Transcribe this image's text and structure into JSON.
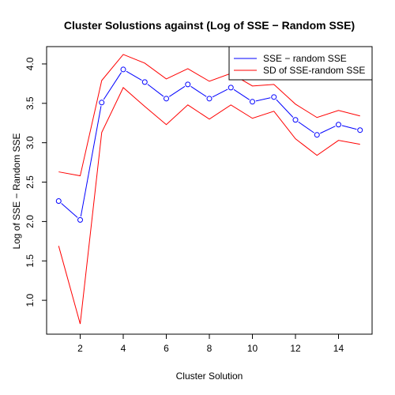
{
  "chart_data": {
    "type": "line",
    "title": "Cluster Solustions against (Log of SSE − Random SSE)",
    "xlabel": "Cluster Solution",
    "ylabel": "Log of SSE − Random SSE",
    "x": [
      1,
      2,
      3,
      4,
      5,
      6,
      7,
      8,
      9,
      10,
      11,
      12,
      13,
      14,
      15
    ],
    "xlim": [
      0.44,
      15.56
    ],
    "ylim": [
      0.57,
      4.22
    ],
    "xticks": [
      2,
      4,
      6,
      8,
      10,
      12,
      14
    ],
    "yticks": [
      1.0,
      1.5,
      2.0,
      2.5,
      3.0,
      3.5,
      4.0
    ],
    "xtick_labels": [
      "2",
      "4",
      "6",
      "8",
      "10",
      "12",
      "14"
    ],
    "ytick_labels": [
      "1.0",
      "1.5",
      "2.0",
      "2.5",
      "3.0",
      "3.5",
      "4.0"
    ],
    "grid": false,
    "legend_position": "top-right",
    "series": [
      {
        "name": "SSE − random SSE",
        "color": "#0000ff",
        "style": "line-with-open-circles",
        "values": [
          2.26,
          2.02,
          3.51,
          3.93,
          3.77,
          3.56,
          3.74,
          3.56,
          3.7,
          3.52,
          3.58,
          3.29,
          3.1,
          3.23,
          3.16
        ]
      },
      {
        "name": "SD of SSE-random SSE",
        "color": "#ff0000",
        "style": "line",
        "band": {
          "upper": [
            2.63,
            2.58,
            3.79,
            4.12,
            4.01,
            3.81,
            3.94,
            3.78,
            3.88,
            3.72,
            3.74,
            3.49,
            3.32,
            3.41,
            3.34
          ],
          "lower": [
            1.69,
            0.7,
            3.13,
            3.7,
            3.46,
            3.23,
            3.48,
            3.3,
            3.48,
            3.31,
            3.4,
            3.05,
            2.84,
            3.03,
            2.98
          ]
        }
      }
    ]
  }
}
